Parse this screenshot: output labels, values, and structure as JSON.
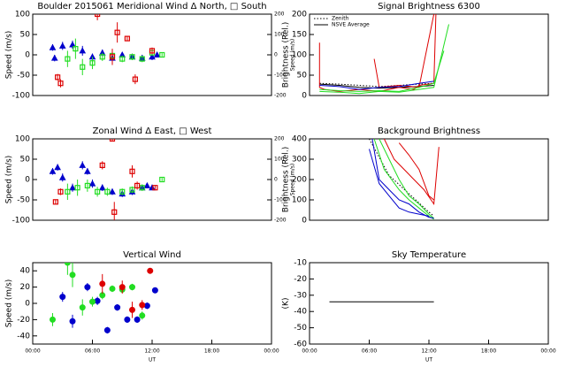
{
  "chart_data": [
    {
      "type": "scatter",
      "title": "Boulder   2015061    Meridional Wind   Δ North, □ South",
      "ylabel": "Speed (m/s)",
      "y2label": "Speed (m/s)",
      "xlim": [
        0,
        24
      ],
      "ylim": [
        -100,
        100
      ],
      "yticks": [
        -100,
        -50,
        0,
        50,
        100
      ],
      "y2lim": [
        -200,
        200
      ],
      "y2ticks": [
        -200,
        -100,
        0,
        100,
        200
      ],
      "series": [
        {
          "color": "#0000cc",
          "marker": "triangle",
          "x": [
            2,
            2.2,
            3,
            4,
            5,
            6,
            7,
            8,
            9,
            10,
            11,
            12,
            12.5
          ],
          "values": [
            18,
            -8,
            22,
            25,
            10,
            -5,
            5,
            -8,
            0,
            -5,
            -8,
            -5,
            0
          ],
          "errors": [
            8,
            8,
            10,
            10,
            12,
            8,
            8,
            8,
            6,
            6,
            8,
            8,
            6
          ]
        },
        {
          "color": "#22dd22",
          "marker": "square",
          "x": [
            3.5,
            4.3,
            5,
            6,
            7,
            8,
            9,
            10,
            11,
            12,
            13
          ],
          "values": [
            -10,
            15,
            -30,
            -20,
            -5,
            -2,
            -10,
            -5,
            -10,
            5,
            0
          ],
          "errors": [
            20,
            25,
            20,
            15,
            10,
            8,
            8,
            8,
            8,
            6,
            4
          ]
        },
        {
          "color": "#dd0000",
          "marker": "square",
          "x": [
            2.5,
            2.8,
            6.5,
            8,
            8.5,
            9.5,
            10.3,
            12
          ],
          "values": [
            -55,
            -70,
            100,
            -5,
            55,
            40,
            -60,
            10
          ],
          "errors": [
            8,
            10,
            15,
            20,
            25,
            5,
            12,
            8
          ]
        }
      ]
    },
    {
      "type": "line",
      "title": "Signal Brightness      6300",
      "ylabel": "Brightness (Rel.)",
      "legend": "upper left",
      "xlim": [
        0,
        24
      ],
      "ylim": [
        0,
        200
      ],
      "yticks": [
        0,
        50,
        100,
        150,
        200
      ],
      "series": [
        {
          "name": "Zenith",
          "color": "#000000",
          "dash": true,
          "x": [
            1,
            3,
            5,
            7,
            9,
            11,
            12.5
          ],
          "values": [
            30,
            28,
            25,
            22,
            25,
            28,
            30
          ]
        },
        {
          "name": "NSVE Average",
          "color": "#000000",
          "x": [
            1,
            3,
            5,
            7,
            9,
            11,
            12.5
          ],
          "values": [
            28,
            25,
            20,
            18,
            20,
            22,
            25
          ]
        },
        {
          "color": "#dd0000",
          "x": [
            1,
            1,
            1.5,
            3,
            5,
            7,
            9,
            10.5,
            11,
            12.5,
            12.7
          ],
          "values": [
            130,
            20,
            15,
            10,
            15,
            10,
            20,
            15,
            25,
            30,
            200
          ]
        },
        {
          "color": "#dd0000",
          "x": [
            6.5,
            7,
            9,
            11,
            12.5
          ],
          "values": [
            90,
            20,
            25,
            20,
            200
          ]
        },
        {
          "color": "#22dd22",
          "x": [
            1,
            3,
            5,
            7,
            9,
            11,
            12.5,
            14
          ],
          "values": [
            10,
            8,
            5,
            10,
            8,
            15,
            20,
            175
          ]
        },
        {
          "color": "#22dd22",
          "x": [
            1,
            3,
            5,
            7,
            9,
            11,
            12.5,
            13.5
          ],
          "values": [
            15,
            12,
            10,
            12,
            10,
            20,
            30,
            110
          ]
        },
        {
          "color": "#0000cc",
          "x": [
            1,
            3,
            5,
            7,
            9,
            11,
            12.5
          ],
          "values": [
            25,
            22,
            15,
            20,
            22,
            30,
            35
          ]
        }
      ]
    },
    {
      "type": "scatter",
      "title": "Zonal Wind      Δ East, □ West",
      "ylabel": "Speed (m/s)",
      "y2label": "Speed (m/s)",
      "xlim": [
        0,
        24
      ],
      "ylim": [
        -100,
        100
      ],
      "yticks": [
        -100,
        -50,
        0,
        50,
        100
      ],
      "y2lim": [
        -200,
        200
      ],
      "y2ticks": [
        -200,
        -100,
        0,
        100,
        200
      ],
      "series": [
        {
          "color": "#0000cc",
          "marker": "triangle",
          "x": [
            2,
            2.5,
            3,
            4,
            5,
            5.5,
            6,
            7,
            8,
            9,
            10,
            11,
            11.5,
            12
          ],
          "values": [
            20,
            30,
            5,
            -20,
            35,
            20,
            -10,
            -20,
            -30,
            -35,
            -30,
            -20,
            -15,
            -20
          ],
          "errors": [
            8,
            8,
            10,
            10,
            10,
            8,
            10,
            8,
            8,
            8,
            8,
            6,
            6,
            6
          ]
        },
        {
          "color": "#22dd22",
          "marker": "square",
          "x": [
            3.5,
            4.5,
            5.5,
            6.5,
            7.5,
            9,
            10,
            11,
            13
          ],
          "values": [
            -30,
            -20,
            -15,
            -30,
            -30,
            -30,
            -25,
            -20,
            0
          ],
          "errors": [
            20,
            20,
            15,
            12,
            10,
            8,
            8,
            8,
            4
          ]
        },
        {
          "color": "#dd0000",
          "marker": "square",
          "x": [
            2.3,
            2.8,
            7,
            8.2,
            8,
            10,
            10.5,
            12.3
          ],
          "values": [
            -55,
            -30,
            35,
            -80,
            100,
            20,
            -15,
            -20
          ],
          "errors": [
            6,
            8,
            10,
            25,
            5,
            15,
            10,
            6
          ]
        }
      ]
    },
    {
      "type": "line",
      "title": "Background Brightness",
      "ylabel": "Brightness (Rel.)",
      "xlim": [
        0,
        24
      ],
      "ylim": [
        0,
        400
      ],
      "yticks": [
        0,
        100,
        200,
        300,
        400
      ],
      "series": [
        {
          "color": "#000000",
          "dash": true,
          "x": [
            6,
            8,
            10,
            12,
            12.5
          ],
          "values": [
            400,
            220,
            130,
            40,
            20
          ]
        },
        {
          "color": "#22dd22",
          "x": [
            7,
            8,
            9,
            10,
            11,
            12,
            12.5
          ],
          "values": [
            400,
            300,
            200,
            120,
            80,
            30,
            10
          ]
        },
        {
          "color": "#22dd22",
          "x": [
            6.5,
            7.5,
            9,
            10,
            11,
            12,
            12.5
          ],
          "values": [
            400,
            250,
            150,
            100,
            60,
            20,
            5
          ]
        },
        {
          "color": "#0000cc",
          "x": [
            6.3,
            7,
            8,
            9,
            10,
            11,
            12,
            12.5
          ],
          "values": [
            400,
            200,
            150,
            100,
            80,
            40,
            15,
            10
          ]
        },
        {
          "color": "#0000cc",
          "x": [
            6,
            7,
            8,
            9,
            10,
            11,
            12
          ],
          "values": [
            350,
            180,
            120,
            60,
            40,
            30,
            20
          ]
        },
        {
          "color": "#dd0000",
          "x": [
            7.5,
            8.5,
            9.5,
            10.5,
            11.5,
            12.5,
            13
          ],
          "values": [
            400,
            300,
            250,
            200,
            150,
            80,
            360
          ]
        },
        {
          "color": "#dd0000",
          "x": [
            9,
            10,
            11,
            12,
            12.5
          ],
          "values": [
            380,
            320,
            250,
            120,
            100
          ]
        }
      ]
    },
    {
      "type": "scatter",
      "title": "Vertical Wind",
      "ylabel": "Speed (m/s)",
      "xlabel": "UT",
      "xlim": [
        0,
        24
      ],
      "xticks": [
        {
          "value": 0,
          "label": "00:00"
        },
        {
          "value": 6,
          "label": "06:00"
        },
        {
          "value": 12,
          "label": "12:00"
        },
        {
          "value": 18,
          "label": "18:00"
        },
        {
          "value": 24,
          "label": "00:00"
        }
      ],
      "ylim": [
        -50,
        50
      ],
      "yticks": [
        -40,
        -20,
        0,
        20,
        40
      ],
      "series": [
        {
          "color": "#0000cc",
          "marker": "circle",
          "x": [
            3,
            4,
            5.5,
            6.5,
            7.5,
            8.5,
            9.5,
            10.5,
            11.5,
            12.3
          ],
          "values": [
            8,
            -22,
            20,
            3,
            -33,
            -5,
            -20,
            -20,
            -3,
            16
          ],
          "errors": [
            6,
            8,
            5,
            5,
            4,
            4,
            4,
            4,
            4,
            3
          ]
        },
        {
          "color": "#22dd22",
          "marker": "circle",
          "x": [
            2,
            3.5,
            4,
            5,
            6,
            7,
            8,
            9,
            10,
            11
          ],
          "values": [
            -20,
            50,
            35,
            -5,
            2,
            10,
            18,
            17,
            20,
            -15
          ],
          "errors": [
            8,
            15,
            15,
            10,
            6,
            5,
            4,
            4,
            4,
            5
          ]
        },
        {
          "color": "#dd0000",
          "marker": "circle",
          "x": [
            7,
            9,
            10,
            11,
            11.8
          ],
          "values": [
            24,
            20,
            -8,
            -2,
            40
          ],
          "errors": [
            12,
            8,
            10,
            6,
            3
          ]
        }
      ]
    },
    {
      "type": "line",
      "title": "Sky Temperature",
      "ylabel": "(K)",
      "xlabel": "UT",
      "xlim": [
        0,
        24
      ],
      "xticks": [
        {
          "value": 0,
          "label": "00:00"
        },
        {
          "value": 6,
          "label": "06:00"
        },
        {
          "value": 12,
          "label": "12:00"
        },
        {
          "value": 18,
          "label": "18:00"
        },
        {
          "value": 24,
          "label": "00:00"
        }
      ],
      "ylim": [
        -60,
        -10
      ],
      "yticks": [
        -60,
        -50,
        -40,
        -30,
        -20,
        -10
      ],
      "series": [
        {
          "color": "#000000",
          "x": [
            2,
            12.5
          ],
          "values": [
            -34,
            -34
          ]
        }
      ]
    }
  ]
}
